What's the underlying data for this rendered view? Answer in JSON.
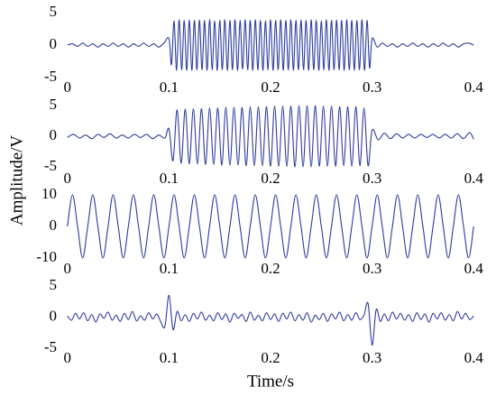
{
  "ylabel": "Amplitude/V",
  "chart_data": [
    {
      "type": "line",
      "x": [
        0,
        0.005,
        0.01,
        0.015,
        0.02,
        0.025,
        0.03,
        0.035,
        0.04,
        0.045,
        0.05,
        0.055,
        0.06,
        0.065,
        0.07,
        0.075,
        0.08,
        0.085,
        0.09,
        0.095,
        0.1,
        0.1025,
        0.105,
        0.1075,
        0.11,
        0.1125,
        0.115,
        0.1175,
        0.12,
        0.1225,
        0.125,
        0.1275,
        0.13,
        0.1325,
        0.135,
        0.1375,
        0.14,
        0.1425,
        0.145,
        0.1475,
        0.15,
        0.1525,
        0.155,
        0.1575,
        0.16,
        0.1625,
        0.165,
        0.1675,
        0.17,
        0.1725,
        0.175,
        0.1775,
        0.18,
        0.1825,
        0.185,
        0.1875,
        0.19,
        0.1925,
        0.195,
        0.1975,
        0.2,
        0.2025,
        0.205,
        0.2075,
        0.21,
        0.2125,
        0.215,
        0.2175,
        0.22,
        0.2225,
        0.225,
        0.2275,
        0.23,
        0.2325,
        0.235,
        0.2375,
        0.24,
        0.2425,
        0.245,
        0.2475,
        0.25,
        0.2525,
        0.255,
        0.2575,
        0.26,
        0.2625,
        0.265,
        0.2675,
        0.27,
        0.2725,
        0.275,
        0.2775,
        0.28,
        0.2825,
        0.285,
        0.2875,
        0.29,
        0.2925,
        0.295,
        0.2975,
        0.3,
        0.305,
        0.31,
        0.315,
        0.32,
        0.325,
        0.33,
        0.335,
        0.34,
        0.345,
        0.35,
        0.355,
        0.36,
        0.365,
        0.37,
        0.375,
        0.38,
        0.385,
        0.39,
        0.395,
        0.4
      ],
      "values": [
        0,
        0.2,
        -0.2,
        0.3,
        -0.2,
        0.2,
        -0.3,
        0.2,
        -0.2,
        0.3,
        -0.2,
        0.2,
        -0.3,
        0.2,
        -0.2,
        0.3,
        -0.2,
        0.2,
        -0.3,
        0.3,
        1.0,
        -3.0,
        3.7,
        -3.9,
        3.9,
        -3.8,
        3.8,
        -3.9,
        3.9,
        -3.9,
        3.8,
        -3.8,
        3.9,
        -3.8,
        3.8,
        -3.9,
        3.9,
        -3.8,
        3.7,
        -3.9,
        3.8,
        -3.8,
        3.9,
        -3.9,
        3.8,
        -3.8,
        3.9,
        -3.9,
        3.8,
        -3.7,
        3.9,
        -3.8,
        3.8,
        -3.9,
        3.9,
        -3.8,
        3.8,
        -3.9,
        3.7,
        -3.8,
        3.9,
        -3.9,
        3.8,
        -3.8,
        3.9,
        -3.9,
        3.8,
        -3.8,
        3.9,
        -3.9,
        3.8,
        -3.8,
        3.9,
        -3.8,
        3.8,
        -3.9,
        3.9,
        -3.8,
        3.8,
        -3.9,
        3.7,
        -3.8,
        3.9,
        -3.9,
        3.8,
        -3.8,
        3.9,
        -3.8,
        3.8,
        -3.9,
        3.9,
        -3.8,
        3.8,
        -3.9,
        3.8,
        -3.8,
        3.9,
        -3.9,
        3.8,
        -3.5,
        1.0,
        -0.3,
        0.3,
        -0.2,
        0.2,
        -0.3,
        0.2,
        -0.2,
        0.3,
        -0.2,
        0.2,
        -0.3,
        0.2,
        -0.2,
        0.3,
        -0.2,
        0.2,
        -0.3,
        0.2,
        0.3,
        0
      ],
      "color": "#2b3c9d",
      "xlim": [
        -0.006,
        0.406
      ],
      "ylim": [
        -5,
        5
      ],
      "xticks": [
        0,
        0.1,
        0.2,
        0.3,
        0.4
      ],
      "yticks": [
        -5,
        0,
        5
      ]
    },
    {
      "type": "line",
      "x": [
        0,
        0.006,
        0.012,
        0.018,
        0.024,
        0.03,
        0.036,
        0.042,
        0.048,
        0.054,
        0.06,
        0.066,
        0.072,
        0.078,
        0.084,
        0.09,
        0.096,
        0.1,
        0.104,
        0.108,
        0.112,
        0.116,
        0.12,
        0.124,
        0.128,
        0.132,
        0.136,
        0.14,
        0.144,
        0.148,
        0.152,
        0.156,
        0.16,
        0.164,
        0.168,
        0.172,
        0.176,
        0.18,
        0.184,
        0.188,
        0.192,
        0.196,
        0.2,
        0.204,
        0.208,
        0.212,
        0.216,
        0.22,
        0.224,
        0.228,
        0.232,
        0.236,
        0.24,
        0.244,
        0.248,
        0.252,
        0.256,
        0.26,
        0.264,
        0.268,
        0.272,
        0.276,
        0.28,
        0.284,
        0.288,
        0.292,
        0.296,
        0.3,
        0.306,
        0.312,
        0.318,
        0.324,
        0.33,
        0.336,
        0.342,
        0.348,
        0.354,
        0.36,
        0.366,
        0.372,
        0.378,
        0.384,
        0.39,
        0.396,
        0.4
      ],
      "values": [
        -0.2,
        0.3,
        -0.3,
        0.2,
        -0.4,
        0.3,
        -0.2,
        0.4,
        -0.3,
        0.2,
        -0.3,
        0.3,
        -0.2,
        0.3,
        -0.4,
        0.2,
        -0.3,
        1.2,
        -4.0,
        4.3,
        -4.4,
        4.4,
        -4.5,
        4.5,
        -4.5,
        4.5,
        -4.6,
        4.6,
        -4.6,
        4.6,
        -4.7,
        4.7,
        -4.7,
        4.7,
        -4.7,
        4.7,
        -4.8,
        4.8,
        -4.8,
        4.8,
        -4.8,
        4.8,
        -4.9,
        4.9,
        -4.9,
        4.9,
        -4.9,
        4.9,
        -5.0,
        5.0,
        -5.0,
        5.0,
        -5.0,
        5.0,
        -4.9,
        4.9,
        -4.9,
        4.9,
        -4.9,
        4.8,
        -4.8,
        4.8,
        -4.9,
        4.8,
        -4.8,
        4.6,
        -4.8,
        1.0,
        -0.6,
        0.5,
        -0.4,
        0.4,
        -0.3,
        0.3,
        -0.3,
        0.3,
        -0.2,
        0.3,
        -0.3,
        0.3,
        -0.3,
        0.4,
        -0.4,
        0.6,
        -0.5
      ],
      "color": "#2b3c9d",
      "xlim": [
        -0.006,
        0.406
      ],
      "ylim": [
        -5,
        5
      ],
      "xticks": [
        0,
        0.1,
        0.2,
        0.3,
        0.4
      ],
      "yticks": [
        -5,
        0,
        5
      ]
    },
    {
      "type": "line",
      "x": [
        0,
        0.005,
        0.01,
        0.015,
        0.02,
        0.025,
        0.03,
        0.035,
        0.04,
        0.045,
        0.05,
        0.055,
        0.06,
        0.065,
        0.07,
        0.075,
        0.08,
        0.085,
        0.09,
        0.095,
        0.1,
        0.105,
        0.11,
        0.115,
        0.12,
        0.125,
        0.13,
        0.135,
        0.14,
        0.145,
        0.15,
        0.155,
        0.16,
        0.165,
        0.17,
        0.175,
        0.18,
        0.185,
        0.19,
        0.195,
        0.2,
        0.205,
        0.21,
        0.215,
        0.22,
        0.225,
        0.23,
        0.235,
        0.24,
        0.245,
        0.25,
        0.255,
        0.26,
        0.265,
        0.27,
        0.275,
        0.28,
        0.285,
        0.29,
        0.295,
        0.3,
        0.305,
        0.31,
        0.315,
        0.32,
        0.325,
        0.33,
        0.335,
        0.34,
        0.345,
        0.35,
        0.355,
        0.36,
        0.365,
        0.37,
        0.375,
        0.38,
        0.385,
        0.39,
        0.395,
        0.4
      ],
      "values": [
        0,
        10,
        0,
        -10,
        0,
        10,
        0,
        -10,
        0,
        10,
        0,
        -10,
        0,
        10,
        0,
        -10,
        0,
        10,
        0,
        -10,
        0,
        10,
        0,
        -10,
        0,
        10,
        0,
        -10,
        0,
        10,
        0,
        -10,
        0,
        10,
        0,
        -10,
        0,
        10,
        0,
        -10,
        0,
        10,
        0,
        -10,
        0,
        10,
        0,
        -10,
        0,
        10,
        0,
        -10,
        0,
        10,
        0,
        -10,
        0,
        10,
        0,
        -10,
        0,
        10,
        0,
        -10,
        0,
        10,
        0,
        -10,
        0,
        10,
        0,
        -10,
        0,
        10,
        0,
        -10,
        0,
        10,
        0,
        -10,
        0
      ],
      "color": "#2b3c9d",
      "xlim": [
        -0.006,
        0.406
      ],
      "ylim": [
        -10,
        10
      ],
      "xticks": [
        0,
        0.1,
        0.2,
        0.3,
        0.4
      ],
      "yticks": [
        -10,
        0,
        10
      ]
    },
    {
      "type": "line",
      "x": [
        0,
        0.004,
        0.008,
        0.012,
        0.016,
        0.02,
        0.024,
        0.028,
        0.032,
        0.036,
        0.04,
        0.044,
        0.048,
        0.052,
        0.056,
        0.06,
        0.064,
        0.068,
        0.072,
        0.076,
        0.08,
        0.084,
        0.088,
        0.092,
        0.096,
        0.1,
        0.104,
        0.108,
        0.112,
        0.116,
        0.12,
        0.124,
        0.128,
        0.132,
        0.136,
        0.14,
        0.144,
        0.148,
        0.152,
        0.156,
        0.16,
        0.164,
        0.168,
        0.172,
        0.176,
        0.18,
        0.184,
        0.188,
        0.192,
        0.196,
        0.2,
        0.204,
        0.208,
        0.212,
        0.216,
        0.22,
        0.224,
        0.228,
        0.232,
        0.236,
        0.24,
        0.244,
        0.248,
        0.252,
        0.256,
        0.26,
        0.264,
        0.268,
        0.272,
        0.276,
        0.28,
        0.284,
        0.288,
        0.292,
        0.296,
        0.3,
        0.304,
        0.308,
        0.312,
        0.316,
        0.32,
        0.324,
        0.328,
        0.332,
        0.336,
        0.34,
        0.344,
        0.348,
        0.352,
        0.356,
        0.36,
        0.364,
        0.368,
        0.372,
        0.376,
        0.38,
        0.384,
        0.388,
        0.392,
        0.396,
        0.4
      ],
      "values": [
        0.2,
        -0.5,
        0.6,
        -0.3,
        0.7,
        -0.6,
        0.4,
        -0.8,
        0.5,
        -0.2,
        0.8,
        -0.5,
        0.3,
        -0.7,
        0.6,
        -0.4,
        0.9,
        -0.6,
        0.2,
        -0.5,
        0.7,
        -0.3,
        0.5,
        -0.8,
        -1.5,
        3.5,
        -2.0,
        0.9,
        -0.6,
        0.4,
        -0.7,
        0.6,
        -0.3,
        0.8,
        -0.5,
        0.3,
        -0.6,
        0.7,
        -0.4,
        0.5,
        -0.8,
        0.6,
        -0.2,
        0.4,
        -0.7,
        0.8,
        -0.5,
        0.3,
        -0.6,
        0.7,
        -0.4,
        0.5,
        -0.7,
        0.6,
        -0.3,
        0.8,
        -0.6,
        0.4,
        -0.5,
        0.7,
        -0.8,
        0.3,
        -0.4,
        0.6,
        -0.7,
        0.5,
        -0.3,
        0.8,
        -0.6,
        0.4,
        -0.5,
        0.7,
        -0.4,
        0.3,
        2.2,
        -4.5,
        1.2,
        -0.7,
        0.5,
        -0.6,
        0.8,
        -0.3,
        0.6,
        -0.5,
        0.4,
        -0.7,
        0.7,
        -0.4,
        0.5,
        -0.8,
        0.6,
        -0.3,
        0.7,
        -0.5,
        0.4,
        -0.6,
        0.9,
        -0.3,
        0.6,
        -0.4,
        0.2
      ],
      "color": "#2b3c9d",
      "xlim": [
        -0.006,
        0.406
      ],
      "ylim": [
        -5,
        5
      ],
      "xticks": [
        0,
        0.1,
        0.2,
        0.3,
        0.4
      ],
      "yticks": [
        -5,
        0,
        5
      ],
      "xlabel": "Time/s"
    }
  ]
}
